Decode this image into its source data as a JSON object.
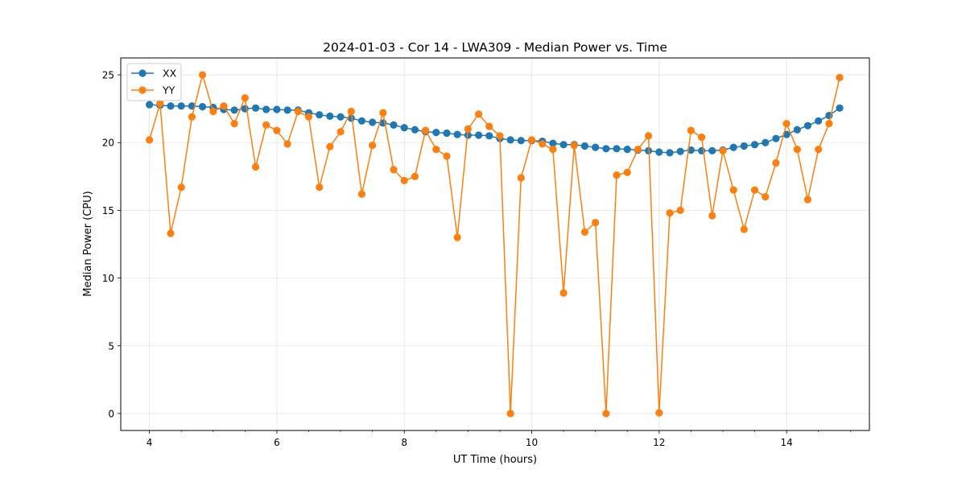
{
  "chart_data": {
    "type": "line",
    "title": "2024-01-03 - Cor 14 - LWA309 - Median Power vs. Time",
    "xlabel": "UT Time (hours)",
    "ylabel": "Median Power (CPU)",
    "xlim": [
      3.55,
      15.3
    ],
    "ylim": [
      -1.25,
      26.25
    ],
    "xticks": [
      4,
      6,
      8,
      10,
      12,
      14
    ],
    "yticks": [
      0,
      5,
      10,
      15,
      20,
      25
    ],
    "grid": true,
    "legend_position": "top-left",
    "x": [
      4.0,
      4.167,
      4.333,
      4.5,
      4.667,
      4.833,
      5.0,
      5.167,
      5.333,
      5.5,
      5.667,
      5.833,
      6.0,
      6.167,
      6.333,
      6.5,
      6.667,
      6.833,
      7.0,
      7.167,
      7.333,
      7.5,
      7.667,
      7.833,
      8.0,
      8.167,
      8.333,
      8.5,
      8.667,
      8.833,
      9.0,
      9.167,
      9.333,
      9.5,
      9.667,
      9.833,
      10.0,
      10.167,
      10.333,
      10.5,
      10.667,
      10.833,
      11.0,
      11.167,
      11.333,
      11.5,
      11.667,
      11.833,
      12.0,
      12.167,
      12.333,
      12.5,
      12.667,
      12.833,
      13.0,
      13.167,
      13.333,
      13.5,
      13.667,
      13.833,
      14.0,
      14.167,
      14.333,
      14.5,
      14.667,
      14.833
    ],
    "series": [
      {
        "name": "XX",
        "color": "#1f77b4",
        "values": [
          22.8,
          22.75,
          22.7,
          22.7,
          22.7,
          22.65,
          22.6,
          22.45,
          22.4,
          22.5,
          22.55,
          22.45,
          22.45,
          22.4,
          22.4,
          22.2,
          22.05,
          21.95,
          21.9,
          21.8,
          21.6,
          21.5,
          21.45,
          21.3,
          21.1,
          20.95,
          20.8,
          20.75,
          20.7,
          20.6,
          20.55,
          20.55,
          20.5,
          20.3,
          20.2,
          20.15,
          20.15,
          20.1,
          19.95,
          19.85,
          19.85,
          19.75,
          19.65,
          19.55,
          19.55,
          19.5,
          19.45,
          19.4,
          19.3,
          19.25,
          19.35,
          19.45,
          19.4,
          19.4,
          19.45,
          19.65,
          19.75,
          19.85,
          20.0,
          20.3,
          20.6,
          20.95,
          21.25,
          21.6,
          22.0,
          22.55
        ]
      },
      {
        "name": "YY",
        "color": "#ff7f0e",
        "values": [
          20.2,
          22.9,
          13.3,
          16.7,
          21.9,
          25.0,
          22.3,
          22.7,
          21.4,
          23.3,
          18.2,
          21.3,
          20.9,
          19.9,
          22.3,
          21.9,
          16.7,
          19.7,
          20.8,
          22.3,
          16.2,
          19.8,
          22.2,
          18.0,
          17.2,
          17.5,
          20.9,
          19.5,
          19.0,
          13.0,
          21.0,
          22.1,
          21.2,
          20.5,
          0.0,
          17.4,
          20.2,
          19.9,
          19.5,
          8.9,
          19.8,
          13.4,
          14.1,
          0.0,
          17.6,
          17.8,
          19.5,
          20.5,
          0.05,
          14.8,
          15.0,
          20.9,
          20.4,
          14.6,
          19.4,
          16.5,
          13.6,
          16.5,
          16.0,
          18.5,
          21.4,
          19.5,
          15.8,
          19.5,
          21.4,
          24.8
        ]
      }
    ]
  }
}
